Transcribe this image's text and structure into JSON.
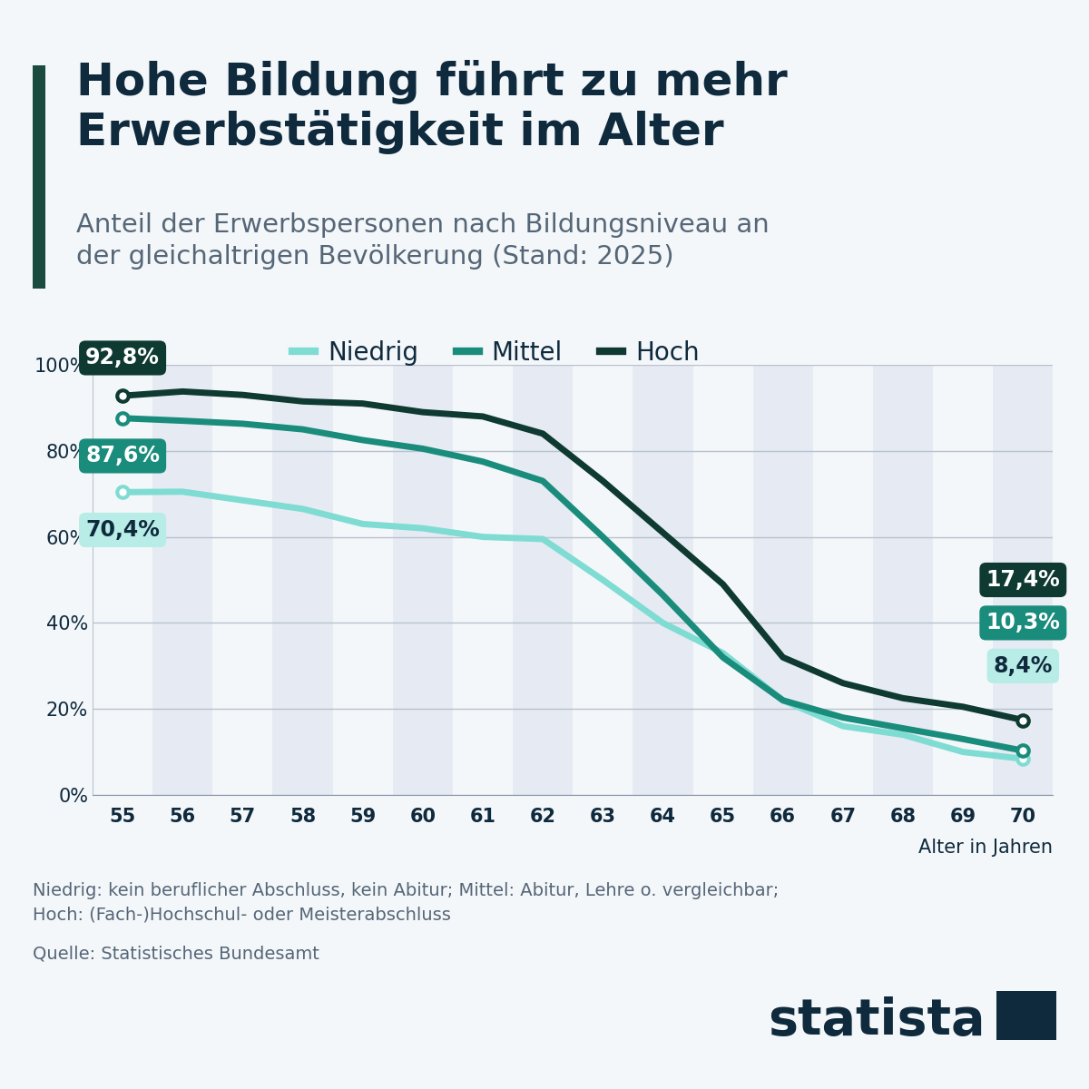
{
  "chart_data": {
    "type": "line",
    "title": "Hohe Bildung führt zu mehr\nErwerbstätigkeit im Alter",
    "subtitle": "Anteil der Erwerbspersonen nach Bildungsniveau an\nder gleichaltrigen Bevölkerung (Stand: 2025)",
    "x_label": "Alter in Jahren",
    "categories": [
      "55",
      "56",
      "57",
      "58",
      "59",
      "60",
      "61",
      "62",
      "63",
      "64",
      "65",
      "66",
      "67",
      "68",
      "69",
      "70"
    ],
    "series": [
      {
        "name": "Niedrig",
        "color": "#7fdcd3",
        "marker": "circle",
        "values": [
          70.4,
          70.5,
          68.5,
          66.5,
          63,
          62,
          60,
          59.5,
          50,
          40,
          33,
          22,
          16,
          14,
          10,
          8.4
        ],
        "value_labels": [
          "70,4%",
          null,
          null,
          null,
          null,
          null,
          null,
          null,
          null,
          null,
          null,
          null,
          null,
          null,
          null,
          "8,4%"
        ]
      },
      {
        "name": "Mittel",
        "color": "#1a8c7c",
        "marker": "circle",
        "values": [
          87.6,
          87,
          86.3,
          85,
          82.5,
          80.5,
          77.5,
          73,
          60,
          46.5,
          32,
          22,
          18,
          15.5,
          13,
          10.3
        ],
        "value_labels": [
          "87,6%",
          null,
          null,
          null,
          null,
          null,
          null,
          null,
          null,
          null,
          null,
          null,
          null,
          null,
          null,
          "10,3%"
        ]
      },
      {
        "name": "Hoch",
        "color": "#0e3a31",
        "marker": "circle",
        "values": [
          92.8,
          93.8,
          93,
          91.5,
          91,
          89,
          88,
          84,
          73,
          61,
          49,
          32,
          26,
          22.5,
          20.5,
          17.4
        ],
        "value_labels": [
          "92,8%",
          null,
          null,
          null,
          null,
          null,
          null,
          null,
          null,
          null,
          null,
          null,
          null,
          null,
          null,
          "17,4%"
        ]
      }
    ],
    "ylim": [
      0,
      100
    ],
    "yticks": [
      {
        "value": 0,
        "label": "0%"
      },
      {
        "value": 20,
        "label": "20%"
      },
      {
        "value": 40,
        "label": "40%"
      },
      {
        "value": 60,
        "label": "60%"
      },
      {
        "value": 80,
        "label": "80%"
      },
      {
        "value": 100,
        "label": "100%"
      }
    ],
    "grid": true,
    "legend": "upper center",
    "data_labels": true,
    "footnote": "Niedrig: kein beruflicher Abschluss, kein Abitur; Mittel: Abitur, Lehre o. vergleichbar;\nHoch: (Fach-)Hochschul- oder Meisterabschluss",
    "source": "Quelle: Statistisches Bundesamt",
    "brand": "statista"
  }
}
